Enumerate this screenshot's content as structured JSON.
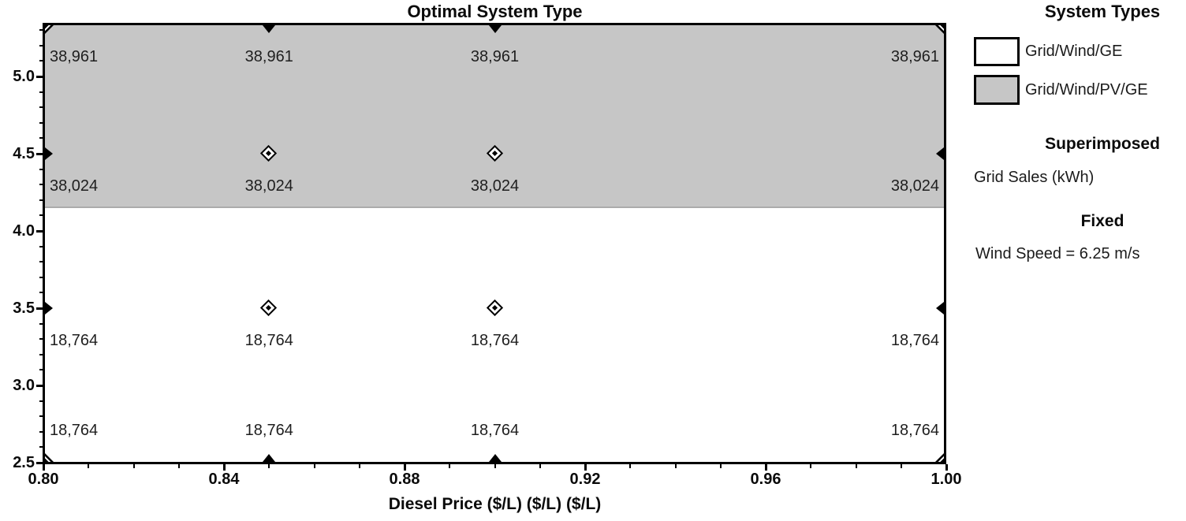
{
  "title": "Optimal System Type",
  "chart_data": {
    "type": "heatmap",
    "title": "Optimal System Type",
    "xlabel": "Diesel Price ($/L) ($/L) ($/L)",
    "ylabel": "",
    "xlim": [
      0.8,
      1.0
    ],
    "ylim": [
      2.5,
      5.35
    ],
    "grid": false,
    "x_ticks": [
      {
        "v": 0.8,
        "label": "0.80"
      },
      {
        "v": 0.84,
        "label": "0.84"
      },
      {
        "v": 0.88,
        "label": "0.88"
      },
      {
        "v": 0.92,
        "label": "0.92"
      },
      {
        "v": 0.96,
        "label": "0.96"
      },
      {
        "v": 1.0,
        "label": "1.00"
      }
    ],
    "y_ticks": [
      {
        "v": 5.0,
        "label": "5.0"
      },
      {
        "v": 4.5,
        "label": "4.5"
      },
      {
        "v": 4.0,
        "label": "4.0"
      },
      {
        "v": 3.5,
        "label": "3.5"
      },
      {
        "v": 3.0,
        "label": "3.0"
      },
      {
        "v": 2.5,
        "label": "2.5"
      }
    ],
    "x_minor_step": 0.01,
    "y_minor_step": 0.1,
    "regions": [
      {
        "system": "Grid/Wind/PV/GE",
        "fill": "#c6c6c6",
        "y_from": 4.15,
        "y_to": 5.35
      },
      {
        "system": "Grid/Wind/GE",
        "fill": "#ffffff",
        "y_from": 2.5,
        "y_to": 4.15
      }
    ],
    "superimposed_variable": "Grid Sales (kWh)",
    "columns_x": [
      0.8,
      0.85,
      0.9,
      1.0
    ],
    "rows": [
      {
        "y": 5.35,
        "edge": "top",
        "grid_sales": [
          "38,961",
          "38,961",
          "38,961",
          "38,961"
        ]
      },
      {
        "y": 4.5,
        "edge": null,
        "grid_sales": [
          "38,024",
          "38,024",
          "38,024",
          "38,024"
        ]
      },
      {
        "y": 3.5,
        "edge": null,
        "grid_sales": [
          "18,764",
          "18,764",
          "18,764",
          "18,764"
        ]
      },
      {
        "y": 2.5,
        "edge": "bottom",
        "grid_sales": [
          "18,764",
          "18,764",
          "18,764",
          "18,764"
        ]
      }
    ]
  },
  "legend": {
    "types_heading": "System Types",
    "items": [
      {
        "label": "Grid/Wind/GE",
        "swatch": "#ffffff"
      },
      {
        "label": "Grid/Wind/PV/GE",
        "swatch": "#c6c6c6"
      }
    ],
    "superimposed_heading": "Superimposed",
    "superimposed_value": "Grid Sales (kWh)",
    "fixed_heading": "Fixed",
    "fixed_value": "Wind Speed = 6.25 m/s"
  },
  "colors": {
    "axis": "#000000",
    "region_gray": "#c6c6c6",
    "region_boundary": "#ababab",
    "text": "#1f1f1f"
  }
}
